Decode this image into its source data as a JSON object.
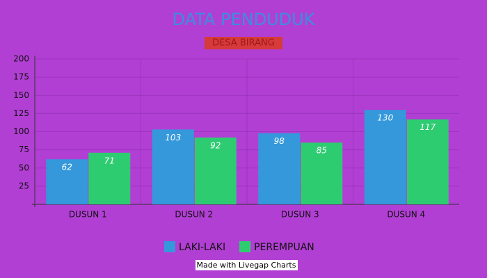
{
  "chart_data": {
    "type": "bar",
    "title": "DATA PENDUDUK",
    "subtitle": "DESA BIRANG",
    "categories": [
      "DUSUN 1",
      "DUSUN 2",
      "DUSUN 3",
      "DUSUN 4"
    ],
    "series": [
      {
        "name": "LAKI-LAKI",
        "color": "#3498db",
        "values": [
          62,
          103,
          98,
          130
        ]
      },
      {
        "name": "PEREMPUAN",
        "color": "#2ecc71",
        "values": [
          71,
          92,
          85,
          117
        ]
      }
    ],
    "ylim": [
      0,
      200
    ],
    "yticks": [
      25,
      50,
      75,
      100,
      125,
      150,
      175,
      200
    ],
    "grid": true,
    "legend": "bottom",
    "footer": "Made with Livegap Charts"
  }
}
